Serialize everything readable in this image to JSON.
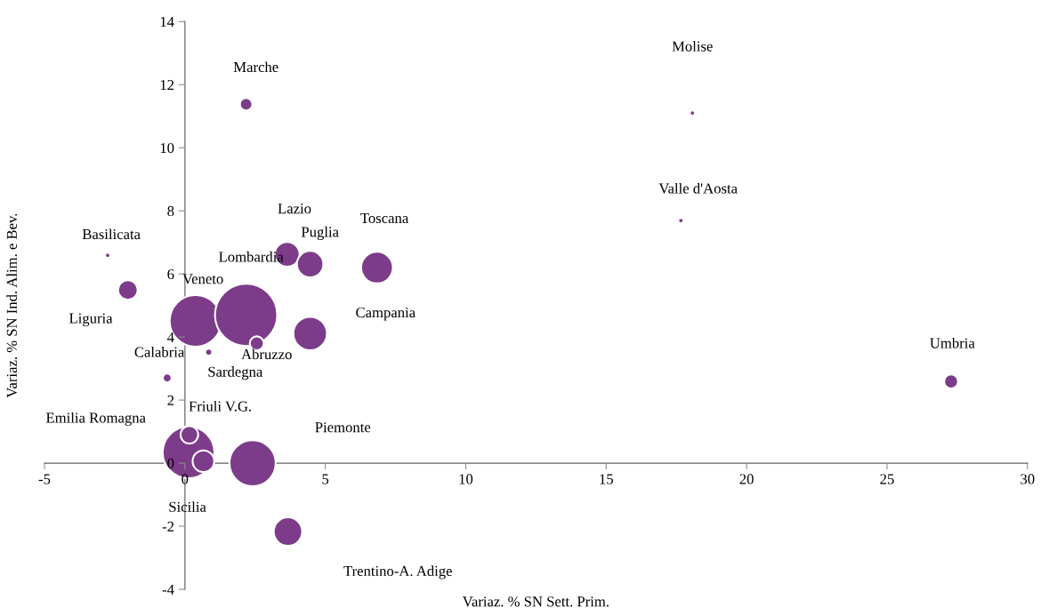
{
  "chart_data": {
    "type": "bubble",
    "xlabel": "Variaz. % SN Sett. Prim.",
    "ylabel": "Variaz. % SN Ind. Alim. e Bev.",
    "xlim": [
      -5,
      30
    ],
    "xticks": [
      -5,
      0,
      5,
      10,
      15,
      20,
      25,
      30
    ],
    "ylim": [
      -4,
      14
    ],
    "yticks": [
      -4,
      -2,
      0,
      2,
      4,
      6,
      8,
      10,
      12,
      14
    ],
    "grid": false,
    "legend": false,
    "series": [
      {
        "color": "#7d3c8a",
        "x": [
          2.18,
          18.07,
          17.66,
          -2.75,
          -2.03,
          3.64,
          4.46,
          6.84,
          0.38,
          2.18,
          4.46,
          2.56,
          0.85,
          -0.63,
          27.28,
          0.13,
          0.16,
          0.66,
          2.41,
          3.67
        ],
        "values": [
          11.38,
          11.1,
          7.69,
          6.59,
          5.49,
          6.62,
          6.31,
          6.2,
          4.51,
          4.7,
          4.11,
          3.8,
          3.52,
          2.7,
          2.59,
          0.34,
          0.9,
          0.06,
          0.0,
          -2.17
        ],
        "sizes": [
          0.04,
          0.007,
          0.007,
          0.007,
          0.1,
          0.16,
          0.18,
          0.26,
          0.69,
          1,
          0.29,
          0.05,
          0.013,
          0.02,
          0.05,
          0.69,
          0.08,
          0.12,
          0.55,
          0.21
        ]
      }
    ],
    "annotations": [
      "Marche",
      "Molise",
      "Valle d'Aosta",
      "Basilicata",
      "Liguria",
      "Lazio",
      "Puglia",
      "Toscana",
      "Veneto",
      "Lombardia",
      "Campania",
      "Abruzzo",
      "Calabria",
      "Sardegna",
      "Umbria",
      "Emilia Romagna",
      "Friuli V.G.",
      "Sicilia",
      "Piemonte",
      "Trentino-A. Adige"
    ]
  }
}
